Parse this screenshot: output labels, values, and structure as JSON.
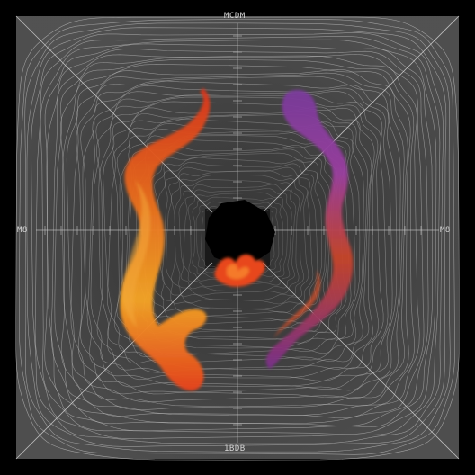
{
  "labels": {
    "top": "MCDM",
    "bottom": "1BDB",
    "left": "M8",
    "right": "M8"
  },
  "colors": {
    "background": "#000000",
    "wall": "#4a4a4a",
    "line": "#bdbdbd",
    "orange_ribbon": "#f08a1c",
    "red_ribbon": "#e0401a",
    "purple_ribbon": "#8a3a9a",
    "center_void": "#000000"
  },
  "icons": [
    "orange-ribbon",
    "purple-ribbon",
    "center-flame"
  ]
}
